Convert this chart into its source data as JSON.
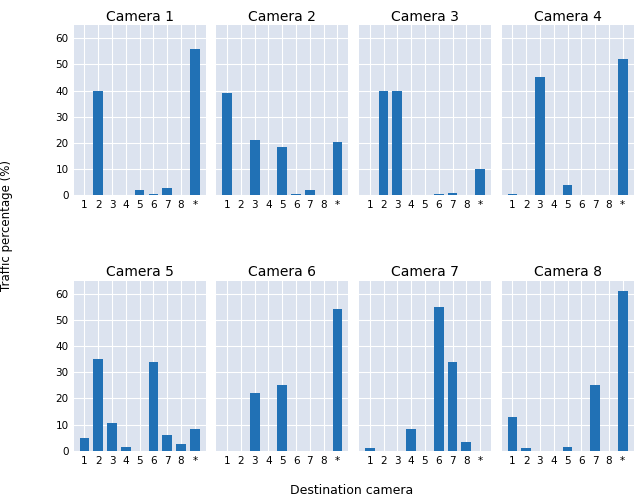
{
  "cameras": [
    "Camera 1",
    "Camera 2",
    "Camera 3",
    "Camera 4",
    "Camera 5",
    "Camera 6",
    "Camera 7",
    "Camera 8"
  ],
  "x_labels": [
    "1",
    "2",
    "3",
    "4",
    "5",
    "6",
    "7",
    "8",
    "*"
  ],
  "bar_data": [
    [
      0,
      40,
      0,
      0,
      2,
      0.5,
      3,
      0,
      56
    ],
    [
      39,
      0,
      21,
      0,
      18.5,
      0.5,
      2,
      0,
      20.5
    ],
    [
      0,
      40,
      40,
      0,
      0,
      0.5,
      1,
      0,
      10
    ],
    [
      0.5,
      0,
      45,
      0,
      4,
      0,
      0,
      0,
      52
    ],
    [
      5,
      35,
      10.5,
      1.5,
      0,
      34,
      6,
      2.5,
      8.5
    ],
    [
      0,
      0,
      22,
      0,
      25,
      0,
      0,
      0,
      54
    ],
    [
      1,
      0,
      0,
      8.5,
      0,
      55,
      34,
      3.5,
      0
    ],
    [
      13,
      1,
      0,
      0,
      1.5,
      0,
      25,
      0,
      61
    ]
  ],
  "bar_color": "#2171b5",
  "background_color": "#dce3ef",
  "grid_color": "white",
  "title_fontsize": 10,
  "tick_fontsize": 7.5,
  "ylabel": "Traffic percentage (%)",
  "xlabel": "Destination camera",
  "ylim": [
    0,
    65
  ],
  "yticks": [
    0,
    10,
    20,
    30,
    40,
    50,
    60
  ]
}
